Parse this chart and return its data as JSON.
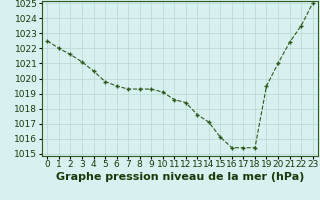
{
  "x": [
    0,
    1,
    2,
    3,
    4,
    5,
    6,
    7,
    8,
    9,
    10,
    11,
    12,
    13,
    14,
    15,
    16,
    17,
    18,
    19,
    20,
    21,
    22,
    23
  ],
  "y": [
    1022.5,
    1022.0,
    1021.6,
    1021.1,
    1020.5,
    1019.8,
    1019.5,
    1019.3,
    1019.3,
    1019.3,
    1019.1,
    1018.6,
    1018.4,
    1017.6,
    1017.1,
    1016.1,
    1015.4,
    1015.4,
    1015.4,
    1019.5,
    1021.0,
    1022.4,
    1023.5,
    1025.0
  ],
  "xlabel": "Graphe pression niveau de la mer (hPa)",
  "ylim": [
    1015,
    1025
  ],
  "xlim": [
    -0.5,
    23.5
  ],
  "yticks": [
    1015,
    1016,
    1017,
    1018,
    1019,
    1020,
    1021,
    1022,
    1023,
    1024,
    1025
  ],
  "xticks": [
    0,
    1,
    2,
    3,
    4,
    5,
    6,
    7,
    8,
    9,
    10,
    11,
    12,
    13,
    14,
    15,
    16,
    17,
    18,
    19,
    20,
    21,
    22,
    23
  ],
  "line_color": "#2d5a1b",
  "marker_color": "#2d5a1b",
  "bg_color": "#d8f0f0",
  "grid_color": "#b8d8d0",
  "xlabel_fontsize": 8,
  "tick_fontsize": 6.5,
  "ylabel_color": "#1a3a0a",
  "xlabel_color": "#1a3a0a"
}
